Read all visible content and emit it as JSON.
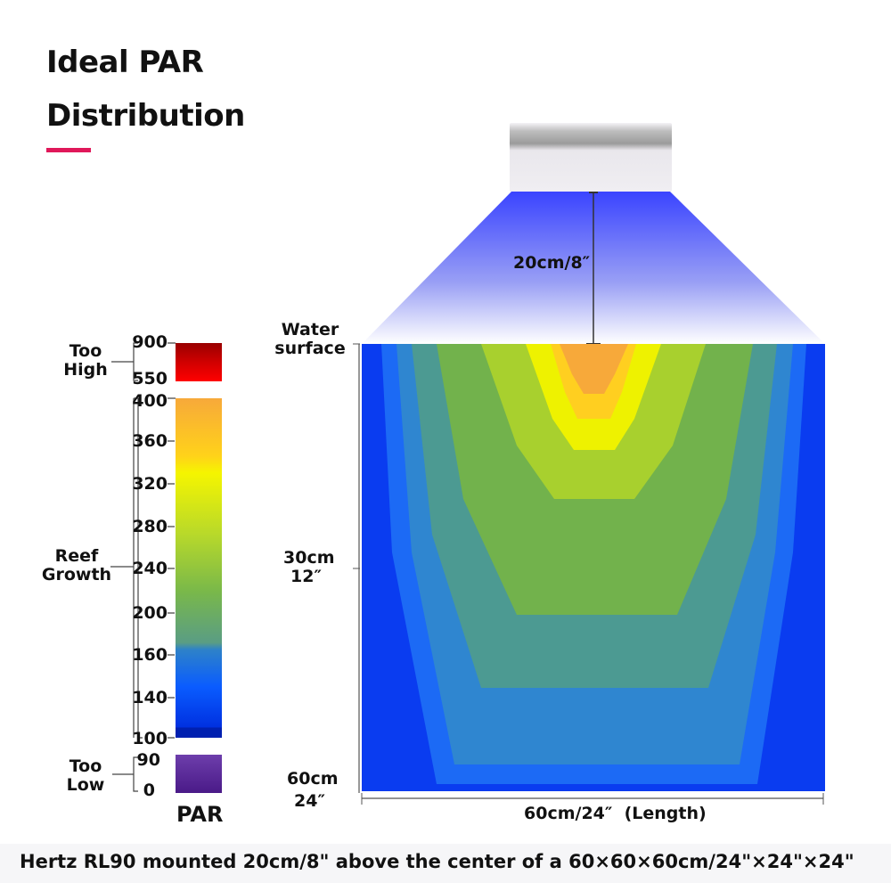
{
  "title": {
    "line1": "Ideal PAR",
    "line2": "Distribution"
  },
  "accent_color": "#e0185a",
  "legend": {
    "unit": "PAR",
    "groups": [
      {
        "label_line1": "Too",
        "label_line2": "High",
        "ticks": [
          "900",
          "550"
        ],
        "colors": [
          "#990000",
          "#cc0000",
          "#ff0000"
        ]
      },
      {
        "label_line1": "Reef",
        "label_line2": "Growth",
        "ticks": [
          "400",
          "360",
          "320",
          "280",
          "240",
          "200",
          "160",
          "140",
          "100"
        ],
        "colors": [
          "#f7a93a",
          "#ffd21a",
          "#f5f500",
          "#b8d92a",
          "#79b84a",
          "#5a9d84",
          "#2e82c8",
          "#0a5cff",
          "#0020c0"
        ]
      },
      {
        "label_line1": "Too",
        "label_line2": "Low",
        "ticks": [
          "90",
          "0"
        ],
        "colors": [
          "#6a3aa8",
          "#4a1a88"
        ]
      }
    ]
  },
  "diagram": {
    "fixture_height": "20cm/8″",
    "water_surface": {
      "line1": "Water",
      "line2": "surface"
    },
    "depth_mid": {
      "line1": "30cm",
      "line2": "12″"
    },
    "depth_bottom": {
      "line1": "60cm",
      "line2": "24″"
    },
    "length_label": "60cm/24″  (Length)"
  },
  "footer": "Hertz RL90 mounted 20cm/8\" above the center of a 60×60×60cm/24\"×24\"×24\""
}
